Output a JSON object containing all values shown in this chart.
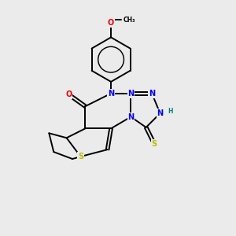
{
  "background_color": "#ebebeb",
  "bond_color": "#000000",
  "N_color": "#0000ee",
  "O_color": "#ee0000",
  "S_color": "#bbbb00",
  "H_color": "#008080",
  "figsize": [
    3.0,
    3.0
  ],
  "dpi": 100,
  "xlim": [
    0,
    10
  ],
  "ylim": [
    0,
    10
  ],
  "lw": 1.4,
  "fs": 7.0
}
